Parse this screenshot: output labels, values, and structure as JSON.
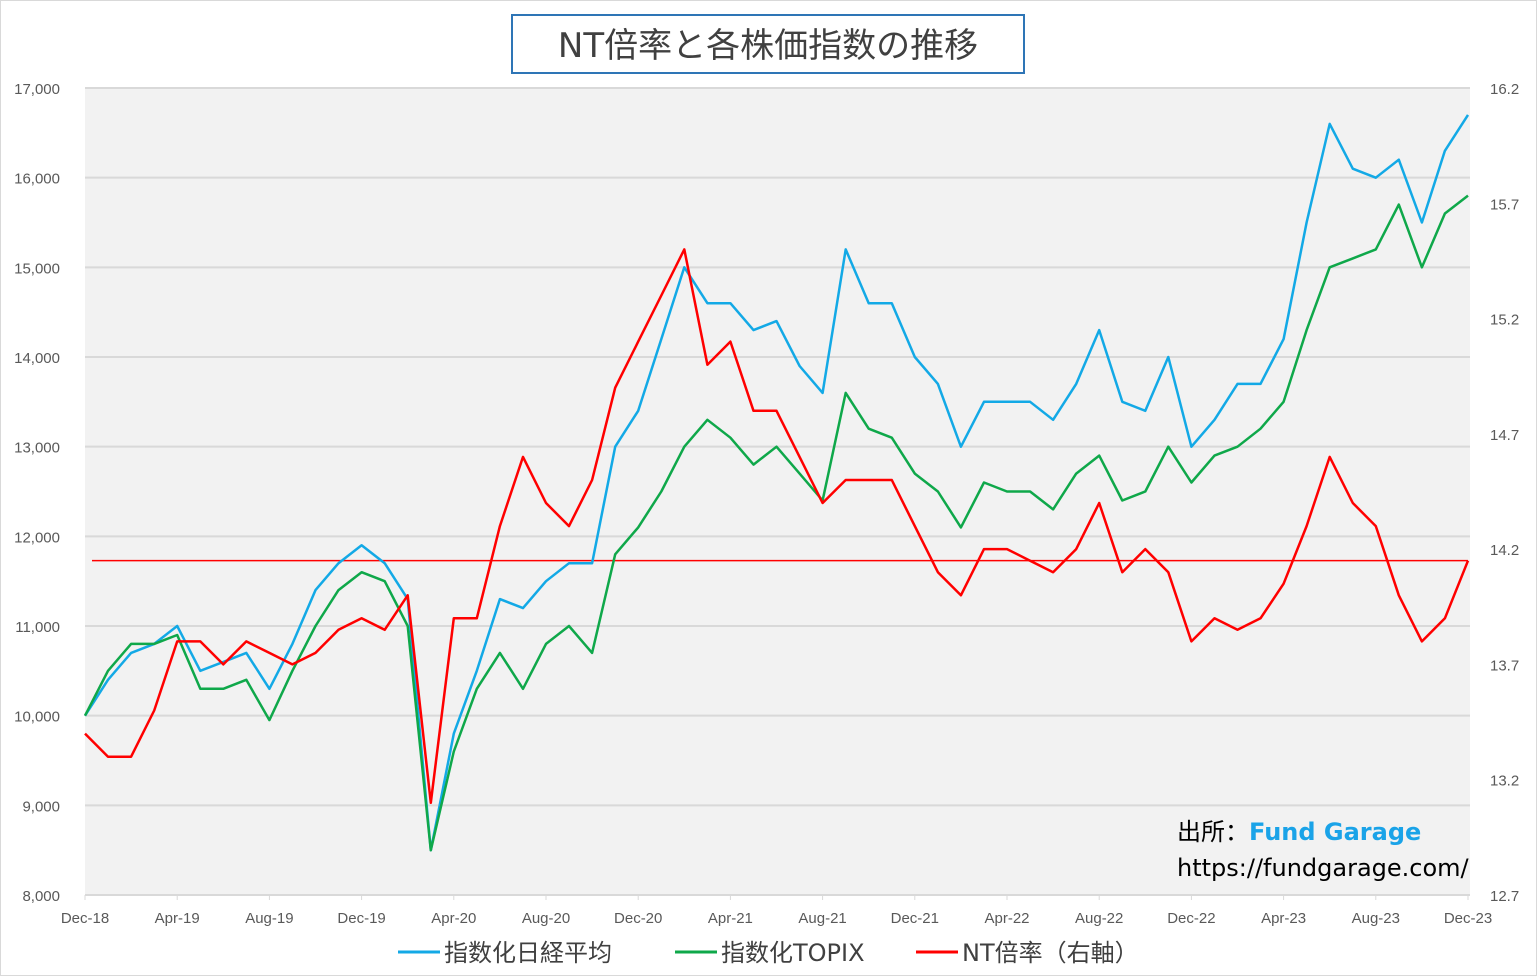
{
  "chart_data": {
    "type": "line",
    "title": "NT倍率と各株価指数の推移",
    "x_ticks": [
      "Dec-18",
      "Apr-19",
      "Aug-19",
      "Dec-19",
      "Apr-20",
      "Aug-20",
      "Dec-20",
      "Apr-21",
      "Aug-21",
      "Dec-21",
      "Apr-22",
      "Aug-22",
      "Dec-22",
      "Apr-23",
      "Aug-23",
      "Dec-23"
    ],
    "y_left": {
      "ylim": [
        8000,
        17000
      ],
      "ticks": [
        "8,000",
        "9,000",
        "10,000",
        "11,000",
        "12,000",
        "13,000",
        "14,000",
        "15,000",
        "16,000",
        "17,000"
      ]
    },
    "y_right": {
      "ylim": [
        12.7,
        16.2
      ],
      "ticks": [
        "12.7",
        "13.2",
        "13.7",
        "14.2",
        "14.7",
        "15.2",
        "15.7",
        "16.2"
      ]
    },
    "x_months": [
      "Dec-18",
      "Jan-19",
      "Feb-19",
      "Mar-19",
      "Apr-19",
      "May-19",
      "Jun-19",
      "Jul-19",
      "Aug-19",
      "Sep-19",
      "Oct-19",
      "Nov-19",
      "Dec-19",
      "Jan-20",
      "Feb-20",
      "Mar-20",
      "Apr-20",
      "May-20",
      "Jun-20",
      "Jul-20",
      "Aug-20",
      "Sep-20",
      "Oct-20",
      "Nov-20",
      "Dec-20",
      "Jan-21",
      "Feb-21",
      "Mar-21",
      "Apr-21",
      "May-21",
      "Jun-21",
      "Jul-21",
      "Aug-21",
      "Sep-21",
      "Oct-21",
      "Nov-21",
      "Dec-21",
      "Jan-22",
      "Feb-22",
      "Mar-22",
      "Apr-22",
      "May-22",
      "Jun-22",
      "Jul-22",
      "Aug-22",
      "Sep-22",
      "Oct-22",
      "Nov-22",
      "Dec-22",
      "Jan-23",
      "Feb-23",
      "Mar-23",
      "Apr-23",
      "May-23",
      "Jun-23",
      "Jul-23",
      "Aug-23",
      "Sep-23",
      "Oct-23",
      "Nov-23",
      "Dec-23"
    ],
    "series": [
      {
        "name": "指数化日経平均",
        "axis": "left",
        "color": "#13a9e6",
        "values": [
          10000,
          10400,
          10700,
          10800,
          11000,
          10500,
          10600,
          10700,
          10300,
          10800,
          11400,
          11700,
          11900,
          11700,
          11300,
          8500,
          9800,
          10500,
          11300,
          11200,
          11500,
          11700,
          11700,
          13000,
          13400,
          14200,
          15000,
          14600,
          14600,
          14300,
          14400,
          13900,
          13600,
          15200,
          14600,
          14600,
          14000,
          13700,
          13000,
          13500,
          13500,
          13500,
          13300,
          13700,
          14300,
          13500,
          13400,
          14000,
          13000,
          13300,
          13700,
          13700,
          14200,
          15500,
          16600,
          16100,
          16000,
          16200,
          15500,
          16300,
          16700
        ]
      },
      {
        "name": "指数化TOPIX",
        "axis": "left",
        "color": "#0fa84a",
        "values": [
          10000,
          10500,
          10800,
          10800,
          10900,
          10300,
          10300,
          10400,
          9950,
          10500,
          11000,
          11400,
          11600,
          11500,
          11000,
          8500,
          9600,
          10300,
          10700,
          10300,
          10800,
          11000,
          10700,
          11800,
          12100,
          12500,
          13000,
          13300,
          13100,
          12800,
          13000,
          12700,
          12400,
          13600,
          13200,
          13100,
          12700,
          12500,
          12100,
          12600,
          12500,
          12500,
          12300,
          12700,
          12900,
          12400,
          12500,
          13000,
          12600,
          12900,
          13000,
          13200,
          13500,
          14300,
          15000,
          15100,
          15200,
          15700,
          15000,
          15600,
          15800
        ]
      },
      {
        "name": "NT倍率（右軸）",
        "axis": "right",
        "color": "#ff0000",
        "values": [
          13.4,
          13.3,
          13.3,
          13.5,
          13.8,
          13.8,
          13.7,
          13.8,
          13.75,
          13.7,
          13.75,
          13.85,
          13.9,
          13.85,
          14.0,
          13.1,
          13.9,
          13.9,
          14.3,
          14.6,
          14.4,
          14.3,
          14.5,
          14.9,
          15.1,
          15.3,
          15.5,
          15.0,
          15.1,
          14.8,
          14.8,
          14.6,
          14.4,
          14.5,
          14.5,
          14.5,
          14.3,
          14.1,
          14.0,
          14.2,
          14.2,
          14.15,
          14.1,
          14.2,
          14.4,
          14.1,
          14.2,
          14.1,
          13.8,
          13.9,
          13.85,
          13.9,
          14.05,
          14.3,
          14.6,
          14.4,
          14.3,
          14.0,
          13.8,
          13.9,
          14.15
        ]
      }
    ],
    "reference_line": {
      "axis": "right",
      "value": 14.15,
      "color": "#ff0000"
    },
    "legend_position": "bottom",
    "grid": true,
    "source": {
      "label": "出所：",
      "name": "Fund Garage",
      "url": "https://fundgarage.com/"
    }
  }
}
